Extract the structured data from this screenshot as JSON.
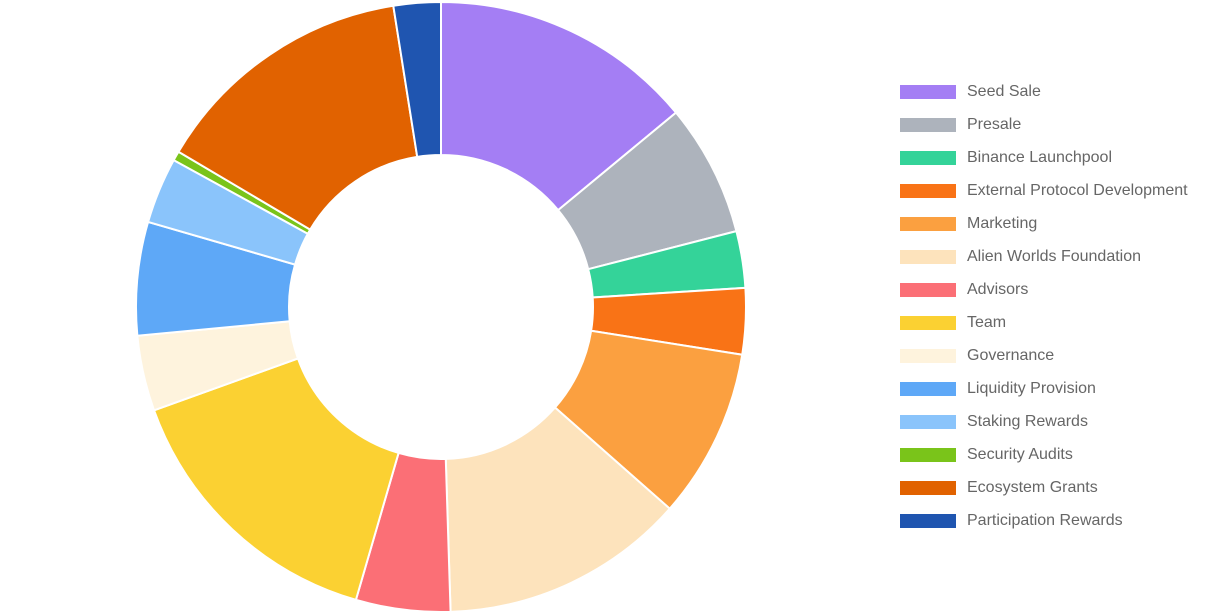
{
  "chart_data": {
    "type": "doughnut",
    "categories": [
      "Seed Sale",
      "Presale",
      "Binance Launchpool",
      "External Protocol Development",
      "Marketing",
      "Alien Worlds Foundation",
      "Advisors",
      "Team",
      "Governance",
      "Liquidity Provision",
      "Staking Rewards",
      "Security Audits",
      "Ecosystem Grants",
      "Participation Rewards"
    ],
    "values": [
      14,
      7,
      3,
      3.5,
      9,
      13,
      5,
      15,
      4,
      6,
      3.5,
      0.5,
      14,
      2.5
    ],
    "colors": [
      "#a47ef4",
      "#adb3bc",
      "#34d399",
      "#f97316",
      "#fba040",
      "#fde3bc",
      "#fb6f76",
      "#fbd132",
      "#fef3dd",
      "#5ea8f7",
      "#8ac4fb",
      "#7ac41a",
      "#e16200",
      "#1f55b0"
    ],
    "legend": "right"
  }
}
